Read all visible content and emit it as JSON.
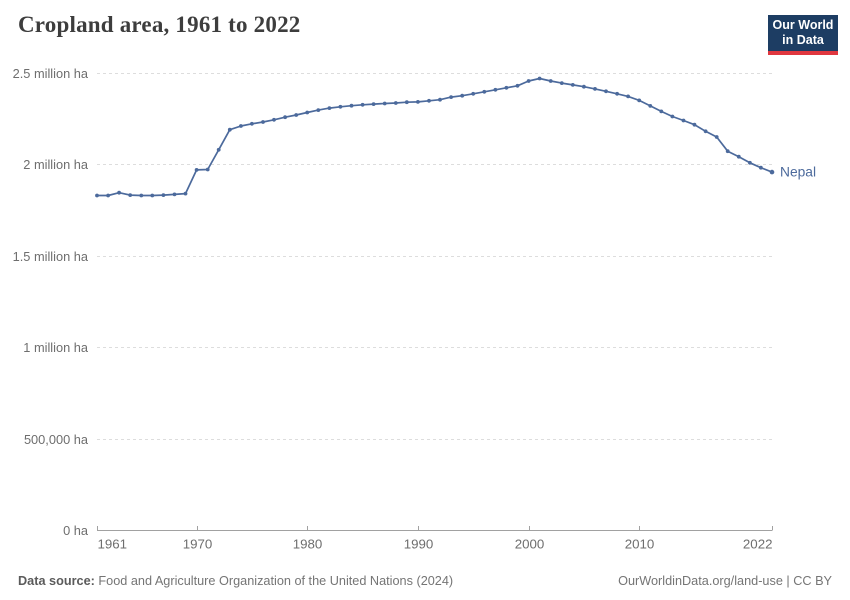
{
  "header": {
    "title": "Cropland area, 1961 to 2022",
    "logo": {
      "line1": "Our World",
      "line2": "in Data"
    }
  },
  "chart_data": {
    "type": "line",
    "title": "Cropland area, 1961 to 2022",
    "entity_label": "Nepal",
    "unit": "ha",
    "xlabel": "",
    "ylabel": "",
    "xlim": [
      1961,
      2022
    ],
    "ylim": [
      0,
      2500000
    ],
    "grid": "horizontal-dashed",
    "legend_position": "end-of-line",
    "xticks": [
      1961,
      1970,
      1980,
      1990,
      2000,
      2010,
      2022
    ],
    "yticks": [
      {
        "value": 0,
        "label": "0 ha"
      },
      {
        "value": 500000,
        "label": "500,000 ha"
      },
      {
        "value": 1000000,
        "label": "1 million ha"
      },
      {
        "value": 1500000,
        "label": "1.5 million ha"
      },
      {
        "value": 2000000,
        "label": "2 million ha"
      },
      {
        "value": 2500000,
        "label": "2.5 million ha"
      }
    ],
    "x": [
      1961,
      1962,
      1963,
      1964,
      1965,
      1966,
      1967,
      1968,
      1969,
      1970,
      1971,
      1972,
      1973,
      1974,
      1975,
      1976,
      1977,
      1978,
      1979,
      1980,
      1981,
      1982,
      1983,
      1984,
      1985,
      1986,
      1987,
      1988,
      1989,
      1990,
      1991,
      1992,
      1993,
      1994,
      1995,
      1996,
      1997,
      1998,
      1999,
      2000,
      2001,
      2002,
      2003,
      2004,
      2005,
      2006,
      2007,
      2008,
      2009,
      2010,
      2011,
      2012,
      2013,
      2014,
      2015,
      2016,
      2017,
      2018,
      2019,
      2020,
      2021,
      2022
    ],
    "series": [
      {
        "name": "Nepal",
        "values": [
          1830000,
          1830000,
          1845000,
          1832000,
          1830000,
          1830000,
          1832000,
          1836000,
          1840000,
          1970000,
          1972000,
          2080000,
          2190000,
          2210000,
          2222000,
          2232000,
          2244000,
          2258000,
          2270000,
          2284000,
          2297000,
          2308000,
          2315000,
          2321000,
          2326000,
          2330000,
          2333000,
          2336000,
          2340000,
          2342000,
          2348000,
          2354000,
          2368000,
          2376000,
          2386000,
          2397000,
          2408000,
          2419000,
          2430000,
          2456000,
          2470000,
          2456000,
          2445000,
          2435000,
          2425000,
          2413000,
          2400000,
          2386000,
          2372000,
          2350000,
          2320000,
          2290000,
          2262000,
          2240000,
          2217000,
          2181000,
          2150000,
          2072000,
          2042000,
          2009000,
          1982000,
          1958000
        ]
      }
    ]
  },
  "footer": {
    "source_label": "Data source:",
    "source_text": " Food and Agriculture Organization of the United Nations (2024)",
    "citation": "OurWorldinData.org/land-use | CC BY"
  },
  "colors": {
    "line": "#4C6A9C",
    "grid": "#dddddd",
    "axis": "#a1a1a1",
    "tick_text": "#6e6e6e",
    "title_text": "#3d3d3d",
    "logo_bg": "#1d3d63",
    "logo_accent": "#e0373f"
  }
}
